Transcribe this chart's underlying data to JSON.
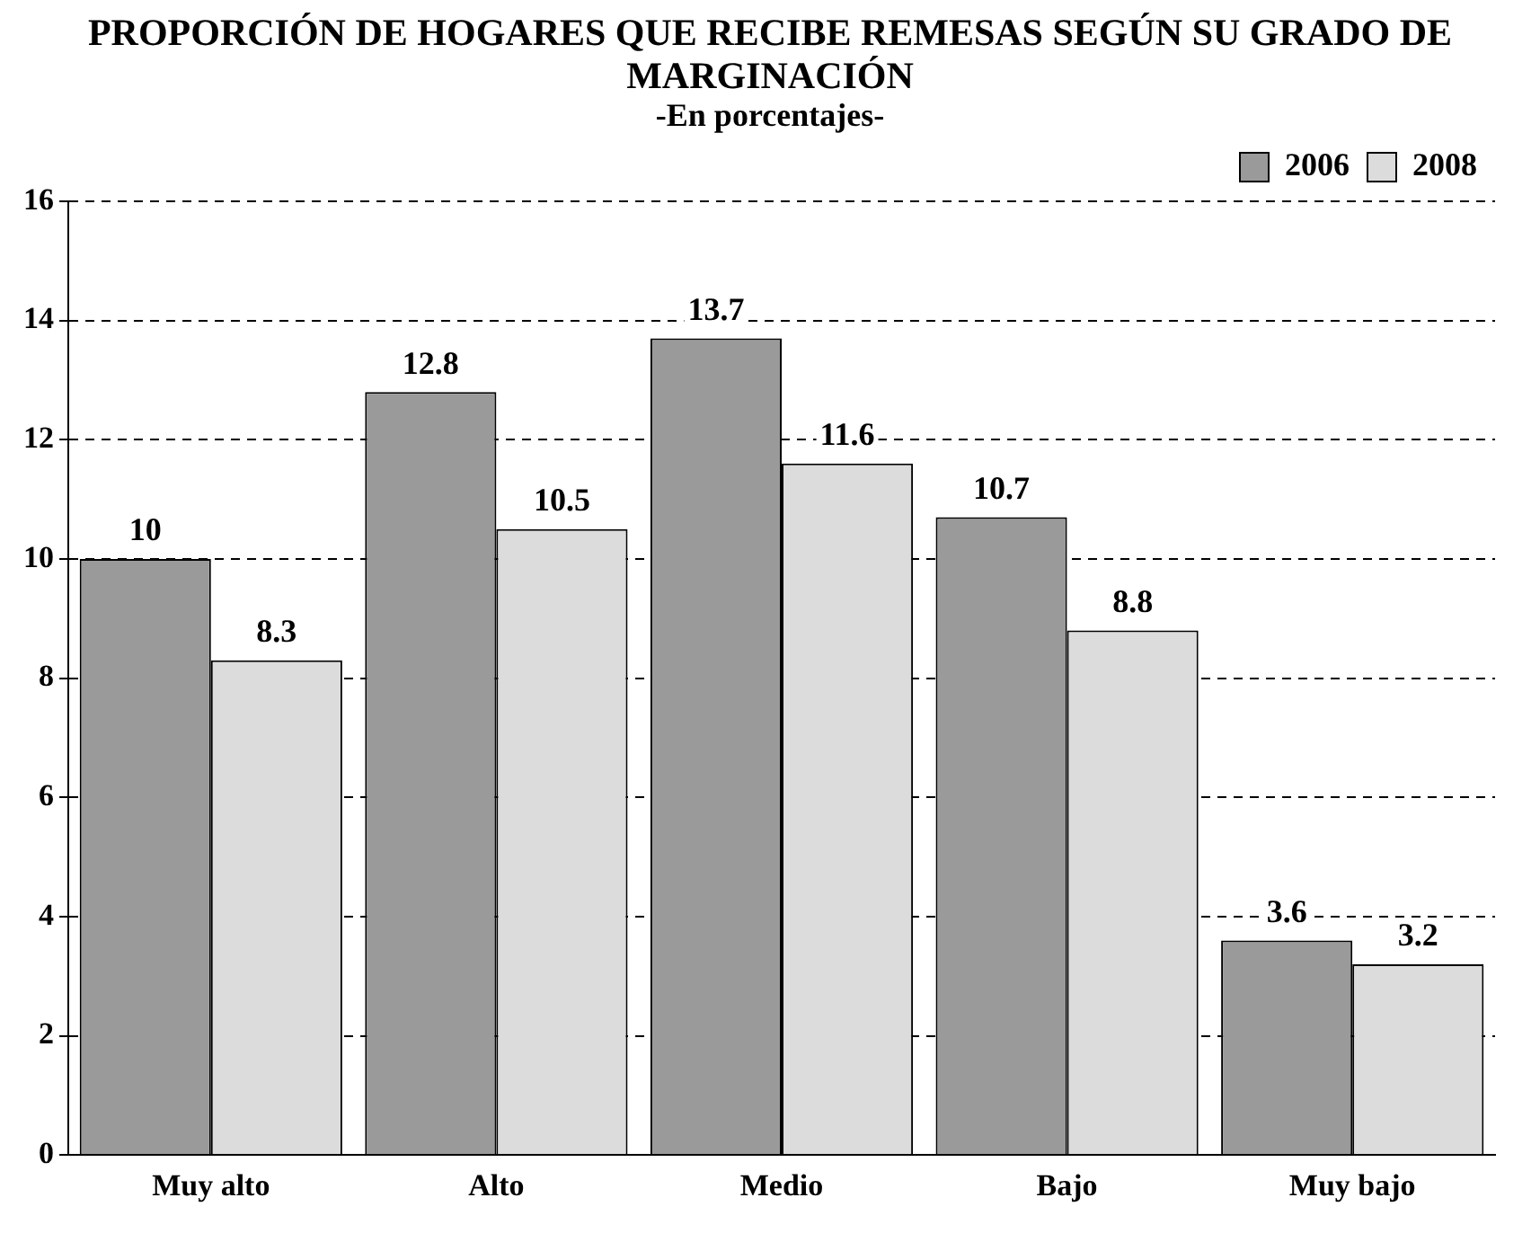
{
  "chart_data": {
    "type": "bar",
    "title": "PROPORCIÓN DE HOGARES QUE RECIBE REMESAS SEGÚN SU GRADO DE MARGINACIÓN",
    "subtitle": "-En porcentajes-",
    "categories": [
      "Muy alto",
      "Alto",
      "Medio",
      "Bajo",
      "Muy bajo"
    ],
    "series": [
      {
        "name": "2006",
        "color": "#9a9a9a",
        "values": [
          10,
          12.8,
          13.7,
          10.7,
          3.6
        ]
      },
      {
        "name": "2008",
        "color": "#dcdcdc",
        "values": [
          8.3,
          10.5,
          11.6,
          8.8,
          3.2
        ]
      }
    ],
    "ylim": [
      0,
      16
    ],
    "yticks": [
      0,
      2,
      4,
      6,
      8,
      10,
      12,
      14,
      16
    ],
    "grid": "y",
    "legend": "top right",
    "data_labels": true
  }
}
